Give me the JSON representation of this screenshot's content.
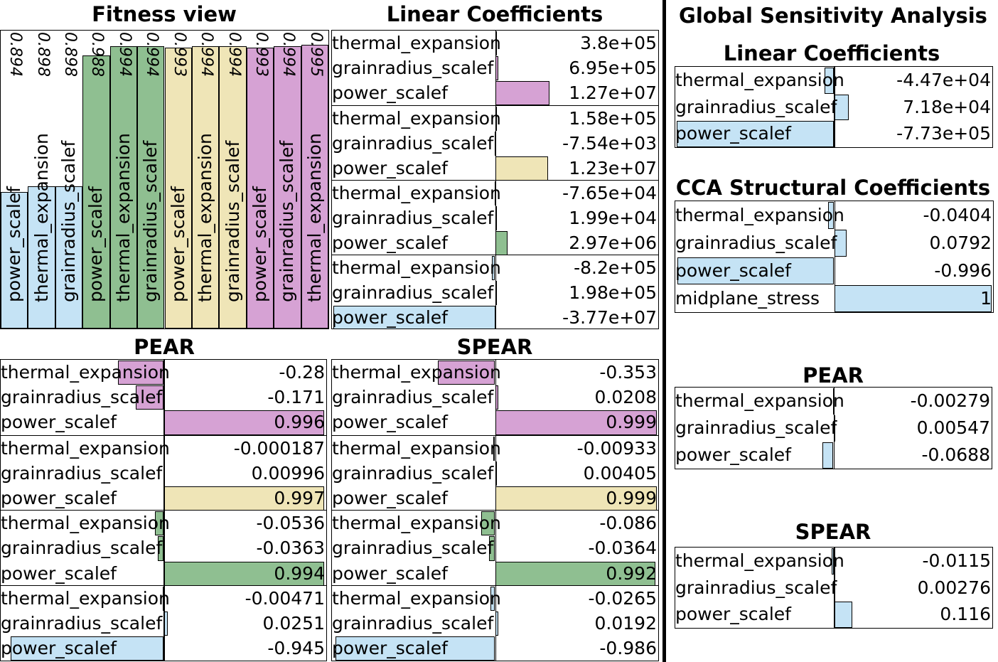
{
  "colors": {
    "blue": "#c5e3f5",
    "green": "#8fbf91",
    "yellow": "#efe5b7",
    "purple": "#d6a2d4"
  },
  "titles": {
    "fitness": "Fitness view",
    "linear": "Linear Coefficients",
    "pear": "PEAR",
    "spear": "SPEAR",
    "global": "Global Sensitivity Analysis",
    "g_linear": "Linear Coefficients",
    "g_cca": "CCA Structural Coefficients",
    "g_pear": "PEAR",
    "g_spear": "SPEAR"
  },
  "chart_data": [
    {
      "id": "fitness",
      "type": "bar",
      "title": "Fitness view",
      "ylim": [
        0,
        1
      ],
      "columns": [
        {
          "label": "power_scalef",
          "value": 0.894,
          "color": "blue"
        },
        {
          "label": "thermal_expansion",
          "value": 0.898,
          "color": "blue"
        },
        {
          "label": "grainradius_scalef",
          "value": 0.898,
          "color": "blue"
        },
        {
          "label": "power_scalef",
          "value": 0.988,
          "color": "green"
        },
        {
          "label": "thermal_expansion",
          "value": 0.994,
          "color": "green"
        },
        {
          "label": "grainradius_scalef",
          "value": 0.994,
          "color": "green"
        },
        {
          "label": "power_scalef",
          "value": 0.993,
          "color": "yellow"
        },
        {
          "label": "thermal_expansion",
          "value": 0.994,
          "color": "yellow"
        },
        {
          "label": "grainradius_scalef",
          "value": 0.994,
          "color": "yellow"
        },
        {
          "label": "power_scalef",
          "value": 0.993,
          "color": "purple"
        },
        {
          "label": "grainradius_scalef",
          "value": 0.994,
          "color": "purple"
        },
        {
          "label": "thermal_expansion",
          "value": 0.995,
          "color": "purple"
        }
      ]
    },
    {
      "id": "linear",
      "type": "bar",
      "title": "Linear Coefficients",
      "xlim": [
        0,
        37700000.0
      ],
      "groups": [
        {
          "color": "purple",
          "rows": [
            {
              "label": "thermal_expansion",
              "value": 380000.0,
              "text": "3.8e+05"
            },
            {
              "label": "grainradius_scalef",
              "value": 695000.0,
              "text": "6.95e+05"
            },
            {
              "label": "power_scalef",
              "value": 12700000.0,
              "text": "1.27e+07"
            }
          ]
        },
        {
          "color": "yellow",
          "rows": [
            {
              "label": "thermal_expansion",
              "value": 158000.0,
              "text": "1.58e+05"
            },
            {
              "label": "grainradius_scalef",
              "value": -7540.0,
              "text": "-7.54e+03"
            },
            {
              "label": "power_scalef",
              "value": 12300000.0,
              "text": "1.23e+07"
            }
          ]
        },
        {
          "color": "green",
          "rows": [
            {
              "label": "thermal_expansion",
              "value": -76500.0,
              "text": "-7.65e+04"
            },
            {
              "label": "grainradius_scalef",
              "value": 19900.0,
              "text": "1.99e+04"
            },
            {
              "label": "power_scalef",
              "value": 2970000.0,
              "text": "2.97e+06"
            }
          ]
        },
        {
          "color": "blue",
          "rows": [
            {
              "label": "thermal_expansion",
              "value": -820000.0,
              "text": "-8.2e+05"
            },
            {
              "label": "grainradius_scalef",
              "value": 198000.0,
              "text": "1.98e+05"
            },
            {
              "label": "power_scalef",
              "value": -37700000.0,
              "text": "-3.77e+07"
            }
          ]
        }
      ]
    },
    {
      "id": "pear",
      "type": "bar",
      "title": "PEAR",
      "xlim": [
        -1,
        1
      ],
      "groups": [
        {
          "color": "purple",
          "rows": [
            {
              "label": "thermal_expansion",
              "value": -0.28,
              "text": "-0.28"
            },
            {
              "label": "grainradius_scalef",
              "value": -0.171,
              "text": "-0.171"
            },
            {
              "label": "power_scalef",
              "value": 0.996,
              "text": "0.996"
            }
          ]
        },
        {
          "color": "yellow",
          "rows": [
            {
              "label": "thermal_expansion",
              "value": -0.000187,
              "text": "-0.000187"
            },
            {
              "label": "grainradius_scalef",
              "value": 0.00996,
              "text": "0.00996"
            },
            {
              "label": "power_scalef",
              "value": 0.997,
              "text": "0.997"
            }
          ]
        },
        {
          "color": "green",
          "rows": [
            {
              "label": "thermal_expansion",
              "value": -0.0536,
              "text": "-0.0536"
            },
            {
              "label": "grainradius_scalef",
              "value": -0.0363,
              "text": "-0.0363"
            },
            {
              "label": "power_scalef",
              "value": 0.994,
              "text": "0.994"
            }
          ]
        },
        {
          "color": "blue",
          "rows": [
            {
              "label": "thermal_expansion",
              "value": -0.00471,
              "text": "-0.00471"
            },
            {
              "label": "grainradius_scalef",
              "value": 0.0251,
              "text": "0.0251"
            },
            {
              "label": "power_scalef",
              "value": -0.945,
              "text": "-0.945"
            }
          ]
        }
      ]
    },
    {
      "id": "spear",
      "type": "bar",
      "title": "SPEAR",
      "xlim": [
        -1,
        1
      ],
      "groups": [
        {
          "color": "purple",
          "rows": [
            {
              "label": "thermal_expansion",
              "value": -0.353,
              "text": "-0.353"
            },
            {
              "label": "grainradius_scalef",
              "value": 0.0208,
              "text": "0.0208"
            },
            {
              "label": "power_scalef",
              "value": 0.999,
              "text": "0.999"
            }
          ]
        },
        {
          "color": "yellow",
          "rows": [
            {
              "label": "thermal_expansion",
              "value": -0.00933,
              "text": "-0.00933"
            },
            {
              "label": "grainradius_scalef",
              "value": 0.00405,
              "text": "0.00405"
            },
            {
              "label": "power_scalef",
              "value": 0.999,
              "text": "0.999"
            }
          ]
        },
        {
          "color": "green",
          "rows": [
            {
              "label": "thermal_expansion",
              "value": -0.086,
              "text": "-0.086"
            },
            {
              "label": "grainradius_scalef",
              "value": -0.0364,
              "text": "-0.0364"
            },
            {
              "label": "power_scalef",
              "value": 0.992,
              "text": "0.992"
            }
          ]
        },
        {
          "color": "blue",
          "rows": [
            {
              "label": "thermal_expansion",
              "value": -0.0265,
              "text": "-0.0265"
            },
            {
              "label": "grainradius_scalef",
              "value": 0.0192,
              "text": "0.0192"
            },
            {
              "label": "power_scalef",
              "value": -0.986,
              "text": "-0.986"
            }
          ]
        }
      ]
    },
    {
      "id": "g_linear",
      "type": "bar",
      "title": "Linear Coefficients",
      "xlim": [
        -773000.0,
        773000.0
      ],
      "groups": [
        {
          "color": "blue",
          "rows": [
            {
              "label": "thermal_expansion",
              "value": -44700.0,
              "text": "-4.47e+04"
            },
            {
              "label": "grainradius_scalef",
              "value": 71800.0,
              "text": "7.18e+04"
            },
            {
              "label": "power_scalef",
              "value": -773000.0,
              "text": "-7.73e+05"
            }
          ]
        }
      ]
    },
    {
      "id": "g_cca",
      "type": "bar",
      "title": "CCA Structural Coefficients",
      "xlim": [
        -1,
        1
      ],
      "groups": [
        {
          "color": "blue",
          "rows": [
            {
              "label": "thermal_expansion",
              "value": -0.0404,
              "text": "-0.0404"
            },
            {
              "label": "grainradius_scalef",
              "value": 0.0792,
              "text": "0.0792"
            },
            {
              "label": "power_scalef",
              "value": -0.996,
              "text": "-0.996"
            },
            {
              "label": "midplane_stress",
              "value": 1,
              "text": "1"
            }
          ]
        }
      ]
    },
    {
      "id": "g_pear",
      "type": "bar",
      "title": "PEAR",
      "xlim": [
        -1,
        1
      ],
      "groups": [
        {
          "color": "blue",
          "rows": [
            {
              "label": "thermal_expansion",
              "value": -0.00279,
              "text": "-0.00279"
            },
            {
              "label": "grainradius_scalef",
              "value": 0.00547,
              "text": "0.00547"
            },
            {
              "label": "power_scalef",
              "value": -0.0688,
              "text": "-0.0688"
            }
          ]
        }
      ]
    },
    {
      "id": "g_spear",
      "type": "bar",
      "title": "SPEAR",
      "xlim": [
        -1,
        1
      ],
      "groups": [
        {
          "color": "blue",
          "rows": [
            {
              "label": "thermal_expansion",
              "value": -0.0115,
              "text": "-0.0115"
            },
            {
              "label": "grainradius_scalef",
              "value": 0.00276,
              "text": "0.00276"
            },
            {
              "label": "power_scalef",
              "value": 0.116,
              "text": "0.116"
            }
          ]
        }
      ]
    }
  ]
}
